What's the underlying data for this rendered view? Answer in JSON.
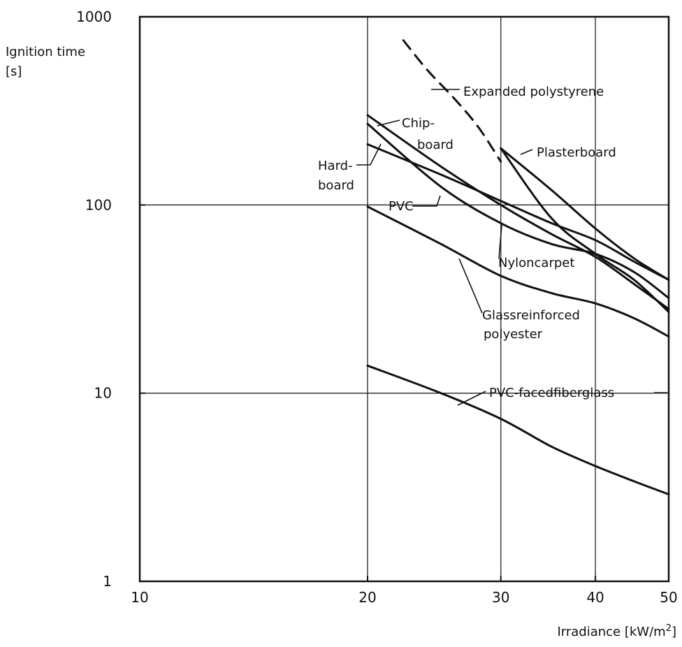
{
  "chart_data": {
    "type": "line",
    "title": "",
    "ylabel": "Ignition time",
    "ylabel_unit": "[s]",
    "xlabel": "Irradiance [kW/m",
    "xlabel_sup": "2",
    "xlabel_close": "]",
    "x_scale": "log",
    "y_scale": "log",
    "xlim": [
      10,
      50
    ],
    "ylim": [
      1,
      1000
    ],
    "x_ticks": [
      10,
      20,
      30,
      40,
      50
    ],
    "x_tick_labels": [
      "10",
      "20",
      "30",
      "40",
      "50"
    ],
    "y_ticks": [
      1,
      10,
      100,
      1000
    ],
    "y_tick_labels": [
      "1",
      "10",
      "100",
      "1000"
    ],
    "grid": true,
    "series": [
      {
        "name": "Expanded polystyrene",
        "style": "dashed",
        "points": [
          [
            22.3,
            750
          ],
          [
            24,
            520
          ],
          [
            26,
            370
          ],
          [
            28,
            260
          ],
          [
            30,
            170
          ]
        ]
      },
      {
        "name": "Plasterboard",
        "style": "solid",
        "points": [
          [
            30,
            200
          ],
          [
            35,
            120
          ],
          [
            40,
            75
          ],
          [
            45,
            52
          ],
          [
            50,
            40
          ]
        ]
      },
      {
        "name": "Chipboard",
        "style": "solid",
        "points": [
          [
            20,
            300
          ],
          [
            25,
            160
          ],
          [
            30,
            100
          ],
          [
            35,
            70
          ],
          [
            40,
            53
          ],
          [
            45,
            38
          ],
          [
            50,
            28
          ]
        ]
      },
      {
        "name": "Hardboard",
        "style": "solid",
        "points": [
          [
            20,
            210
          ],
          [
            25,
            145
          ],
          [
            30,
            105
          ],
          [
            35,
            80
          ],
          [
            40,
            65
          ],
          [
            45,
            50
          ],
          [
            50,
            40
          ]
        ]
      },
      {
        "name": "PVC",
        "style": "solid",
        "points": [
          [
            20,
            270
          ],
          [
            25,
            125
          ],
          [
            30,
            80
          ],
          [
            35,
            62
          ],
          [
            40,
            55
          ],
          [
            45,
            44
          ],
          [
            50,
            32
          ]
        ]
      },
      {
        "name": "Nyloncarpet",
        "style": "solid",
        "points": [
          [
            30,
            200
          ],
          [
            35,
            85
          ],
          [
            40,
            55
          ],
          [
            45,
            40
          ],
          [
            50,
            27
          ]
        ]
      },
      {
        "name": "Glassreinforced polyester",
        "style": "solid",
        "points": [
          [
            20,
            98
          ],
          [
            25,
            62
          ],
          [
            30,
            42
          ],
          [
            35,
            34
          ],
          [
            40,
            30
          ],
          [
            45,
            25
          ],
          [
            50,
            20
          ]
        ]
      },
      {
        "name": "PVC-facedfiberglass",
        "style": "solid",
        "points": [
          [
            20,
            14
          ],
          [
            25,
            10
          ],
          [
            30,
            7.3
          ],
          [
            35,
            5.2
          ],
          [
            40,
            4.1
          ],
          [
            45,
            3.4
          ],
          [
            50,
            2.9
          ]
        ]
      }
    ],
    "annotations": {
      "eps": "Expanded polystyrene",
      "chip1": "Chip-",
      "chip2": "board",
      "hard1": "Hard-",
      "hard2": "board",
      "plaster": "Plasterboard",
      "pvc": "PVC",
      "nylon": "Nyloncarpet",
      "grp1": "Glassreinforced",
      "grp2": "polyester",
      "pvcfg": "PVC-facedfiberglass"
    }
  }
}
